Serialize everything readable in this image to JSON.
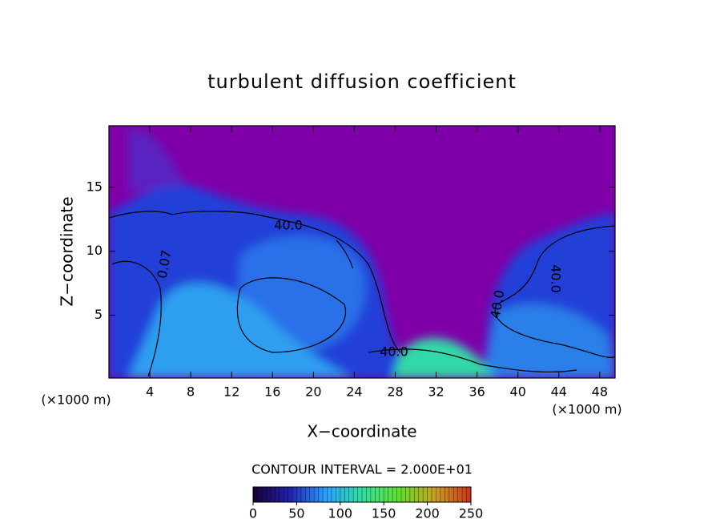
{
  "chart_data": {
    "type": "contour",
    "title": "turbulent diffusion coefficient",
    "x_label": "X−coordinate",
    "y_label": "Z−coordinate",
    "y_unit": "(×1000 m)",
    "x_unit": "(×1000 m)",
    "xlim": [
      0,
      49.5
    ],
    "ylim": [
      0.1,
      19.8
    ],
    "xticks": [
      4,
      8,
      12,
      16,
      20,
      24,
      28,
      32,
      36,
      40,
      44,
      48
    ],
    "yticks": [
      5,
      10,
      15
    ],
    "contour_labels": [
      "40.0",
      "0.07",
      "40.0",
      "40.0",
      "40.0"
    ],
    "contour_interval": "CONTOUR INTERVAL = 2.000E+01",
    "colorbar": {
      "lim": [
        0,
        250
      ],
      "ticks": [
        0,
        50,
        100,
        150,
        200,
        250
      ],
      "colors": [
        "#1a0033",
        "#2020b0",
        "#2aa0ff",
        "#30e0a0",
        "#60e030",
        "#c8a020",
        "#d03020"
      ]
    },
    "background_color": "#7f00a8"
  }
}
